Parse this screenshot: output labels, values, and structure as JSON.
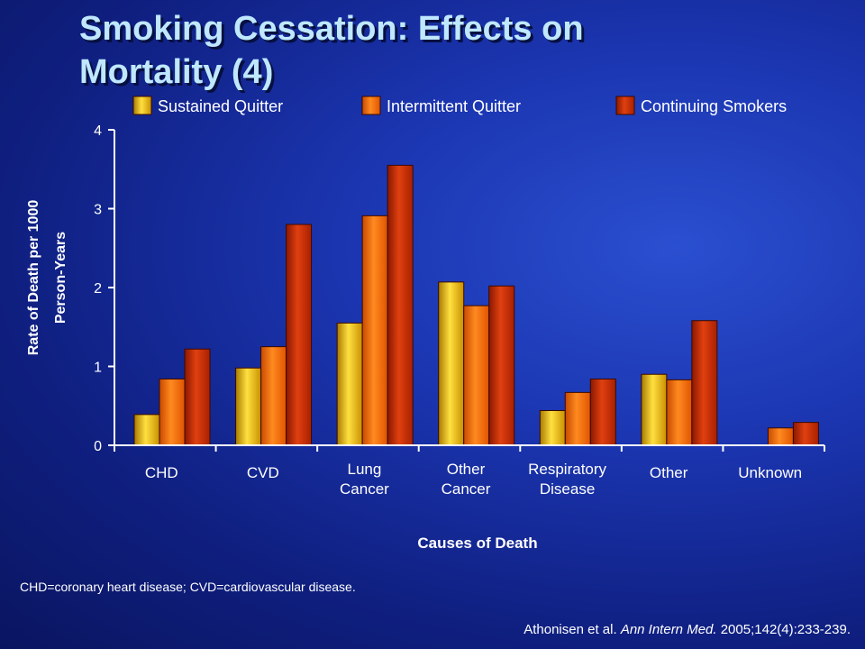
{
  "title": {
    "line1": "Smoking Cessation: Effects on",
    "line2": "Mortality (4)"
  },
  "footnote": "CHD=coronary heart disease; CVD=cardiovascular disease.",
  "citation": {
    "authors": "Athonisen et al.",
    "journal": "Ann Intern Med.",
    "details": "2005;142(4):233-239."
  },
  "colors": {
    "sustained": "#e8b400",
    "intermittent": "#ff6a00",
    "continuing": "#c42800",
    "axis": "#ffffff"
  },
  "chart_data": {
    "type": "bar",
    "xlabel": "Causes of Death",
    "ylabel": [
      "Rate of Death per 1000",
      "Person-Years"
    ],
    "ylim": [
      0,
      4
    ],
    "yticks": [
      0,
      1,
      2,
      3,
      4
    ],
    "legend_position": "top",
    "grid": false,
    "categories": [
      [
        "CHD"
      ],
      [
        "CVD"
      ],
      [
        "Lung",
        "Cancer"
      ],
      [
        "Other",
        "Cancer"
      ],
      [
        "Respiratory",
        "Disease"
      ],
      [
        "Other"
      ],
      [
        "Unknown"
      ]
    ],
    "series": [
      {
        "name": "Sustained Quitter",
        "color": "sustained",
        "values": [
          0.39,
          0.98,
          1.55,
          2.07,
          0.44,
          0.9,
          null
        ]
      },
      {
        "name": "Intermittent Quitter",
        "color": "intermittent",
        "values": [
          0.84,
          1.25,
          2.91,
          1.77,
          0.67,
          0.83,
          0.22
        ]
      },
      {
        "name": "Continuing Smokers",
        "color": "continuing",
        "values": [
          1.22,
          2.8,
          3.55,
          2.02,
          0.84,
          1.58,
          0.29
        ]
      }
    ]
  }
}
